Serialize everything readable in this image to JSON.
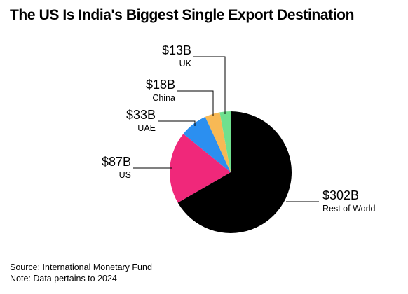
{
  "title": "The US Is India's Biggest Single Export Destination",
  "footer": {
    "source": "Source: International Monetary Fund",
    "note": "Note: Data pertains to 2024"
  },
  "chart_data": {
    "type": "pie",
    "title": "The US Is India's Biggest Single Export Destination",
    "slices": [
      {
        "name": "Rest of World",
        "label": "$302B",
        "value": 302,
        "color": "#000000"
      },
      {
        "name": "US",
        "label": "$87B",
        "value": 87,
        "color": "#f0287a"
      },
      {
        "name": "UAE",
        "label": "$33B",
        "value": 33,
        "color": "#2b8ff0"
      },
      {
        "name": "China",
        "label": "$18B",
        "value": 18,
        "color": "#f7b955"
      },
      {
        "name": "UK",
        "label": "$13B",
        "value": 13,
        "color": "#6fe08e"
      }
    ]
  }
}
